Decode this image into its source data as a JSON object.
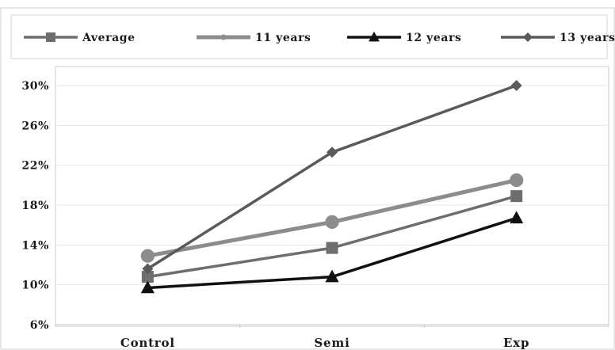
{
  "chart_data": {
    "type": "line",
    "categories": [
      "Control",
      "Semi",
      "Exp"
    ],
    "ylim": [
      6,
      30
    ],
    "yticks": [
      6,
      10,
      14,
      18,
      22,
      26,
      30
    ],
    "ytick_suffix": "%",
    "grid": true,
    "legend_position": "top",
    "series": [
      {
        "name": "Average",
        "values": [
          10.8,
          13.7,
          18.9
        ],
        "color": "#6e6e6e",
        "marker": "square",
        "line_width": "medium"
      },
      {
        "name": "11 years",
        "values": [
          12.9,
          16.3,
          20.5
        ],
        "color": "#8c8c8c",
        "marker": "circle",
        "line_width": "thick"
      },
      {
        "name": "12 years",
        "values": [
          9.7,
          10.8,
          16.7
        ],
        "color": "#111111",
        "marker": "triangle",
        "line_width": "medium"
      },
      {
        "name": "13 years",
        "values": [
          11.6,
          23.3,
          30.0
        ],
        "color": "#5a5a5a",
        "marker": "diamond",
        "line_width": "medium"
      }
    ]
  }
}
